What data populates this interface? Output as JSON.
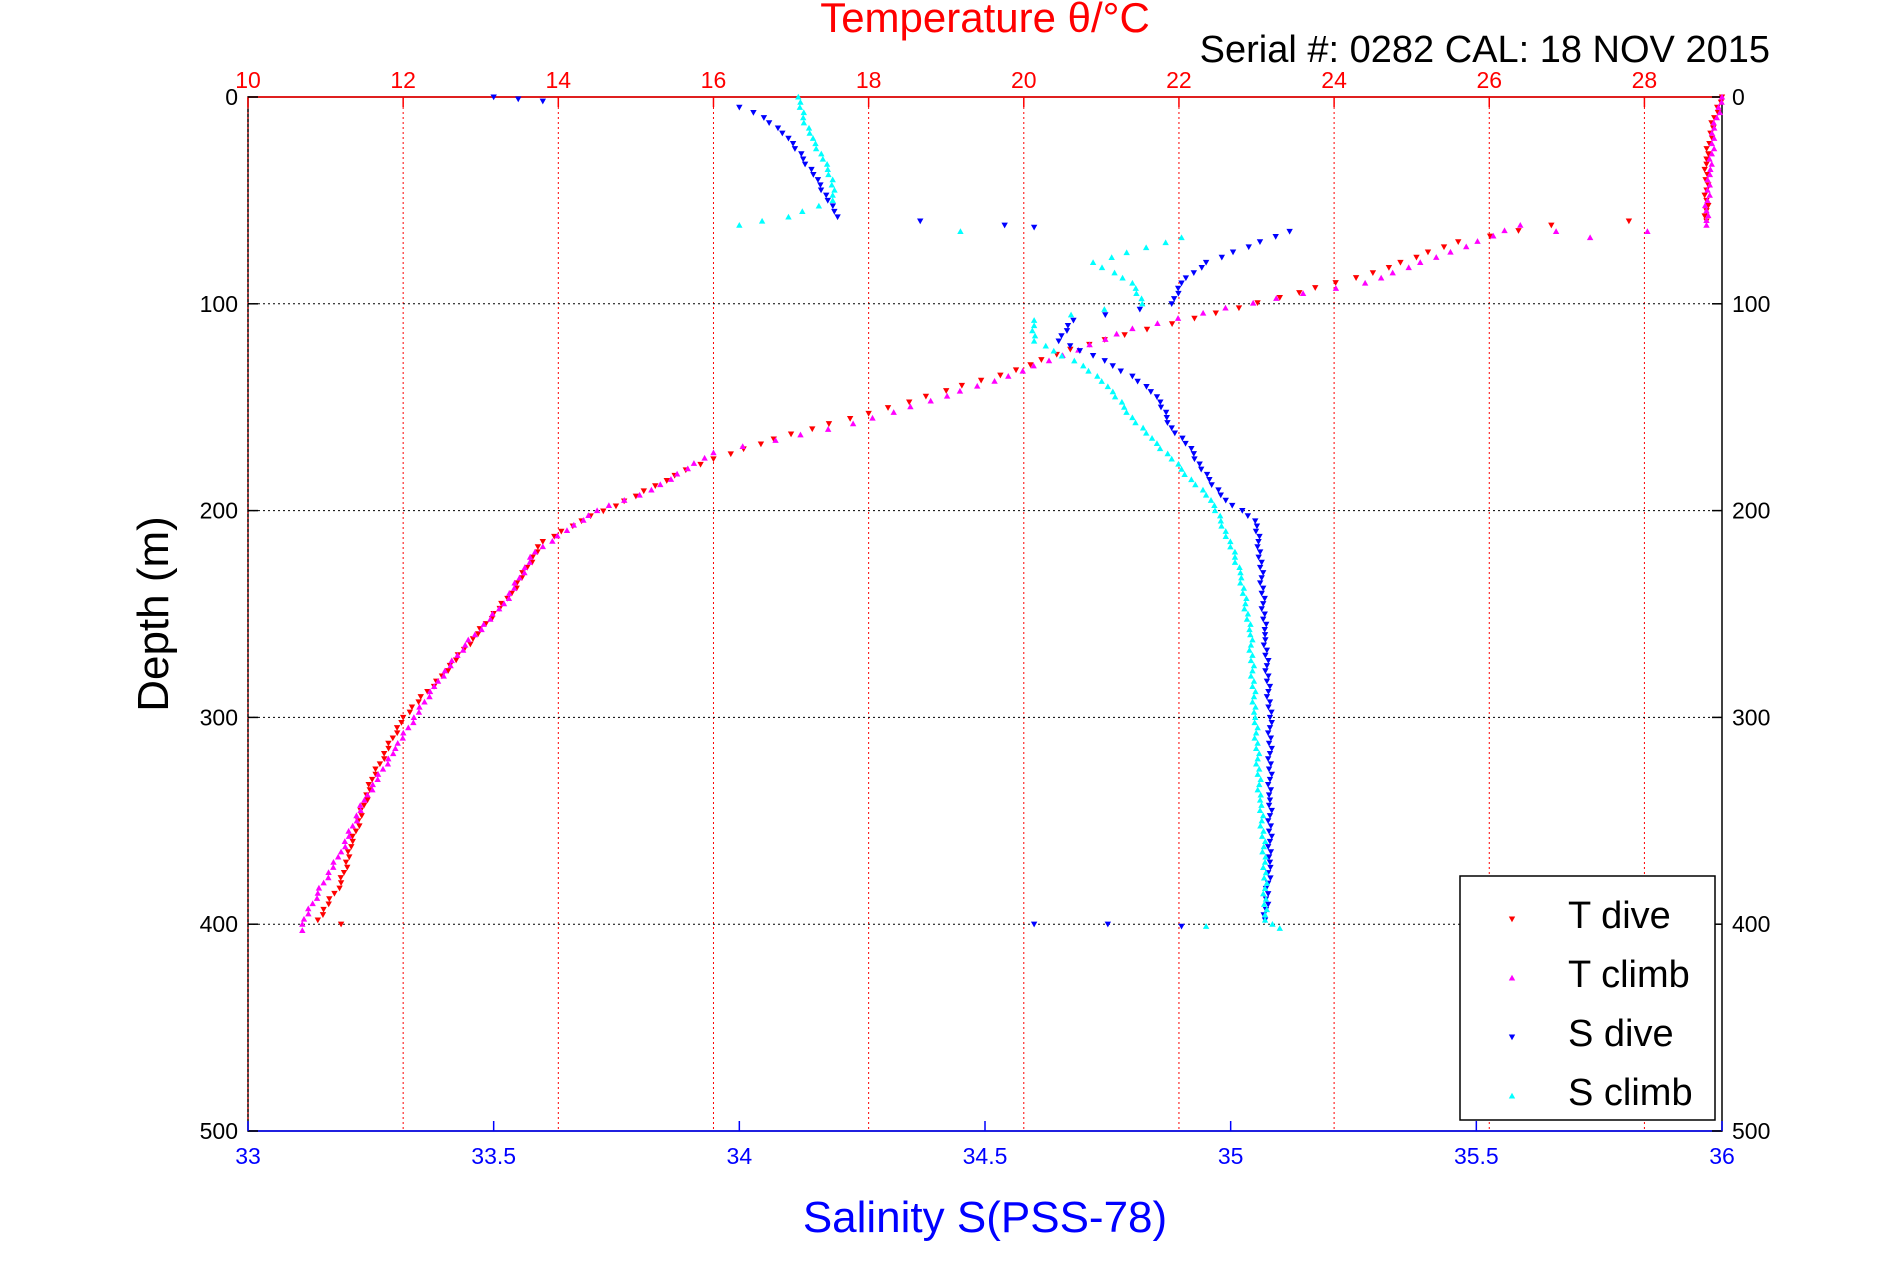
{
  "chart_data": {
    "type": "scatter",
    "title": "Temperature θ/°C",
    "subtitle": "Serial #: 0282  CAL: 18 NOV 2015",
    "xlabel": "Salinity S(PSS-78)",
    "ylabel": "Depth (m)",
    "y_ticks": [
      "0",
      "100",
      "200",
      "300",
      "400",
      "500"
    ],
    "ylim": [
      0,
      500
    ],
    "y_inverted": true,
    "top_axis": {
      "label": "Temperature θ/°C",
      "ticks": [
        "10",
        "12",
        "14",
        "16",
        "18",
        "20",
        "22",
        "24",
        "26",
        "28"
      ],
      "range": [
        10,
        29
      ],
      "color": "#ff0000"
    },
    "bottom_axis": {
      "label": "Salinity S(PSS-78)",
      "ticks": [
        "33",
        "33.5",
        "34",
        "34.5",
        "35",
        "35.5",
        "36"
      ],
      "range": [
        33,
        36
      ],
      "color": "#0000ff"
    },
    "grid": true,
    "legend_position": "bottom-right",
    "legend": [
      "T dive",
      "T climb",
      "S dive",
      "S climb"
    ],
    "series": [
      {
        "name": "T dive",
        "axis": "temperature",
        "color": "#ff0000",
        "marker": "triangle-down",
        "points": [
          [
            29.0,
            0
          ],
          [
            28.9,
            10
          ],
          [
            28.8,
            30
          ],
          [
            28.8,
            50
          ],
          [
            28.8,
            60
          ],
          [
            27.8,
            60
          ],
          [
            26.8,
            62
          ],
          [
            25.6,
            70
          ],
          [
            24.5,
            85
          ],
          [
            23.3,
            97
          ],
          [
            22.2,
            107
          ],
          [
            21.3,
            115
          ],
          [
            20.6,
            122
          ],
          [
            19.9,
            132
          ],
          [
            19.0,
            142
          ],
          [
            18.0,
            153
          ],
          [
            17.0,
            163
          ],
          [
            16.0,
            175
          ],
          [
            15.5,
            183
          ],
          [
            15.0,
            193
          ],
          [
            14.3,
            205
          ],
          [
            13.8,
            215
          ],
          [
            13.4,
            240
          ],
          [
            12.9,
            262
          ],
          [
            12.5,
            280
          ],
          [
            12.0,
            300
          ],
          [
            11.6,
            330
          ],
          [
            11.35,
            360
          ],
          [
            11.2,
            380
          ],
          [
            10.9,
            398
          ],
          [
            11.2,
            400
          ]
        ]
      },
      {
        "name": "T climb",
        "axis": "temperature",
        "color": "#ff00ff",
        "marker": "triangle-up",
        "points": [
          [
            29.0,
            0
          ],
          [
            28.9,
            15
          ],
          [
            28.85,
            35
          ],
          [
            28.8,
            55
          ],
          [
            28.8,
            62
          ],
          [
            27.3,
            68
          ],
          [
            26.4,
            62
          ],
          [
            25.5,
            75
          ],
          [
            24.4,
            90
          ],
          [
            23.6,
            95
          ],
          [
            22.6,
            102
          ],
          [
            21.4,
            112
          ],
          [
            20.5,
            125
          ],
          [
            19.8,
            135
          ],
          [
            18.8,
            147
          ],
          [
            17.8,
            158
          ],
          [
            16.8,
            166
          ],
          [
            16.0,
            172
          ],
          [
            15.2,
            190
          ],
          [
            14.5,
            200
          ],
          [
            14.2,
            207
          ],
          [
            13.7,
            220
          ],
          [
            13.3,
            245
          ],
          [
            12.8,
            265
          ],
          [
            12.4,
            285
          ],
          [
            11.9,
            315
          ],
          [
            11.5,
            340
          ],
          [
            11.2,
            365
          ],
          [
            10.9,
            385
          ],
          [
            10.7,
            400
          ],
          [
            10.7,
            403
          ]
        ]
      },
      {
        "name": "S dive",
        "axis": "salinity",
        "color": "#0000ff",
        "marker": "triangle-down",
        "points": [
          [
            33.5,
            0
          ],
          [
            33.55,
            1
          ],
          [
            33.6,
            2
          ],
          [
            34.0,
            5
          ],
          [
            34.05,
            10
          ],
          [
            34.1,
            20
          ],
          [
            34.13,
            30
          ],
          [
            34.16,
            40
          ],
          [
            34.18,
            50
          ],
          [
            34.2,
            58
          ],
          [
            34.54,
            62
          ],
          [
            34.6,
            63
          ],
          [
            35.12,
            65
          ],
          [
            34.95,
            80
          ],
          [
            34.9,
            90
          ],
          [
            34.88,
            100
          ],
          [
            34.68,
            108
          ],
          [
            34.65,
            118
          ],
          [
            34.72,
            125
          ],
          [
            34.8,
            135
          ],
          [
            34.85,
            145
          ],
          [
            34.88,
            160
          ],
          [
            34.92,
            170
          ],
          [
            34.94,
            180
          ],
          [
            34.99,
            195
          ],
          [
            35.05,
            205
          ],
          [
            35.06,
            220
          ],
          [
            35.07,
            260
          ],
          [
            35.08,
            300
          ],
          [
            35.08,
            340
          ],
          [
            35.08,
            370
          ],
          [
            35.07,
            398
          ],
          [
            34.6,
            400
          ],
          [
            34.75,
            400
          ],
          [
            34.9,
            401
          ]
        ]
      },
      {
        "name": "S climb",
        "axis": "salinity",
        "color": "#00ffff",
        "marker": "triangle-up",
        "points": [
          [
            34.12,
            0
          ],
          [
            34.13,
            10
          ],
          [
            34.15,
            20
          ],
          [
            34.17,
            30
          ],
          [
            34.19,
            40
          ],
          [
            34.19,
            50
          ],
          [
            34.1,
            58
          ],
          [
            34.0,
            62
          ],
          [
            34.9,
            68
          ],
          [
            34.72,
            80
          ],
          [
            34.8,
            90
          ],
          [
            34.82,
            100
          ],
          [
            34.6,
            108
          ],
          [
            34.6,
            118
          ],
          [
            34.7,
            130
          ],
          [
            34.75,
            140
          ],
          [
            34.8,
            155
          ],
          [
            34.84,
            165
          ],
          [
            34.88,
            175
          ],
          [
            34.92,
            185
          ],
          [
            34.96,
            195
          ],
          [
            34.99,
            210
          ],
          [
            35.02,
            230
          ],
          [
            35.04,
            260
          ],
          [
            35.05,
            300
          ],
          [
            35.06,
            340
          ],
          [
            35.07,
            370
          ],
          [
            35.07,
            398
          ],
          [
            35.1,
            402
          ],
          [
            34.95,
            401
          ]
        ]
      }
    ]
  }
}
